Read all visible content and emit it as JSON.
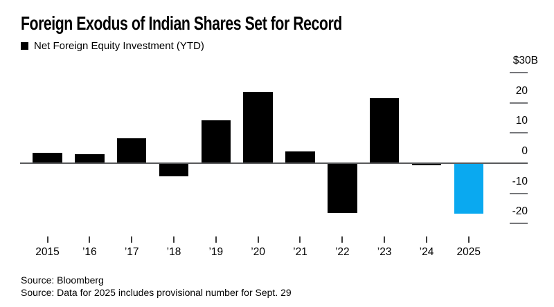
{
  "header": {
    "title": "Foreign Exodus of Indian Shares Set for Record",
    "legend": {
      "label": "Net Foreign Equity Investment (YTD)",
      "swatch_color": "#000000"
    }
  },
  "chart_data": {
    "type": "bar",
    "title": "Foreign Exodus of Indian Shares Set for Record",
    "legend": [
      "Net Foreign Equity Investment (YTD)"
    ],
    "legend_position": "top-left",
    "unit": "USD billions",
    "categories": [
      "2015",
      "’16",
      "’17",
      "’18",
      "’19",
      "’20",
      "’21",
      "’22",
      "’23",
      "’24",
      "2025"
    ],
    "values": [
      3.5,
      3.0,
      8.2,
      -4.3,
      14.3,
      23.5,
      4.0,
      -16.5,
      21.4,
      -0.7,
      -16.8
    ],
    "xlabel": "",
    "ylabel": "",
    "y_ticks": [
      {
        "label": "$30B",
        "value": 30
      },
      {
        "label": "20",
        "value": 20
      },
      {
        "label": "10",
        "value": 10
      },
      {
        "label": "0",
        "value": 0
      },
      {
        "label": "-10",
        "value": -10
      },
      {
        "label": "-20",
        "value": -20
      }
    ],
    "y_range": [
      -25,
      30
    ],
    "grid": false,
    "axis_side": "right",
    "bar_color": "#000000",
    "highlight": {
      "category": "2025",
      "index": 10,
      "color": "#0aa9f0"
    },
    "baseline_color": "#58595b",
    "tick_color": "#76777a",
    "x_tick_color": "#3c3c3c"
  },
  "footer": {
    "line1": "Source: Bloomberg",
    "line2": "Source: Data for 2025 includes provisional number for Sept. 29"
  }
}
